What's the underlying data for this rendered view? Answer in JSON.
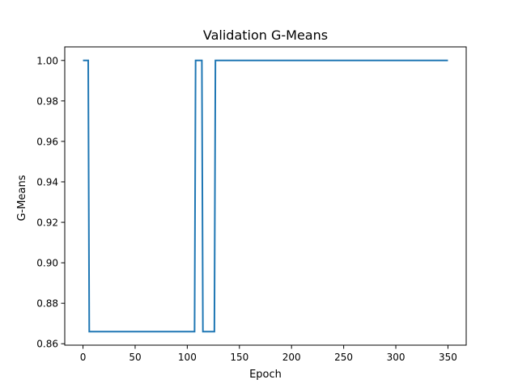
{
  "chart_data": {
    "type": "line",
    "title": "Validation G-Means",
    "xlabel": "Epoch",
    "ylabel": "G-Means",
    "xlim": [
      -17.5,
      367.5
    ],
    "ylim": [
      0.8593,
      1.0067
    ],
    "xticks": [
      0,
      50,
      100,
      150,
      200,
      250,
      300,
      350
    ],
    "yticks": [
      0.86,
      0.88,
      0.9,
      0.92,
      0.94,
      0.96,
      0.98,
      1.0
    ],
    "xtick_labels": [
      "0",
      "50",
      "100",
      "150",
      "200",
      "250",
      "300",
      "350"
    ],
    "ytick_labels": [
      "0.86",
      "0.88",
      "0.90",
      "0.92",
      "0.94",
      "0.96",
      "0.98",
      "1.00"
    ],
    "grid": false,
    "series": [
      {
        "color": "#1f77b4",
        "x": [
          0,
          5,
          6,
          107,
          108,
          114,
          115,
          126,
          127,
          350
        ],
        "y": [
          1.0,
          1.0,
          0.866,
          0.866,
          1.0,
          1.0,
          0.866,
          0.866,
          1.0,
          1.0
        ]
      }
    ]
  }
}
